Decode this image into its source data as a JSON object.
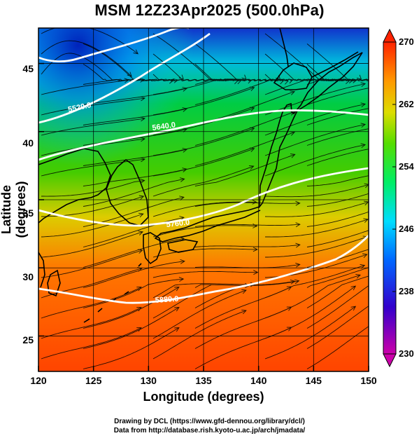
{
  "title": "MSM 12Z23Apr2025 (500.0hPa)",
  "credits": {
    "line1": "Drawing by DCL (https://www.gfd-dennou.org/library/dcl/)",
    "line2": "Data from http://database.rish.kyoto-u.ac.jp/arch/jmadata/"
  },
  "map": {
    "xlabel": "Longitude (degrees)",
    "ylabel": "Latitude  (degrees)",
    "lon_range": [
      120,
      150
    ],
    "lat_range": [
      22.4,
      47.6
    ],
    "x_ticks": [
      "120",
      "125",
      "130",
      "135",
      "140",
      "145",
      "150"
    ],
    "y_ticks": [
      "25",
      "30",
      "35",
      "40",
      "45"
    ],
    "contour_labels": [
      "5520.0",
      "5640.0",
      "5760.0",
      "5880.0"
    ],
    "contour_field": "geopotential height (m)",
    "shading_field": "temperature (K)",
    "colors": {
      "cold": "#0033cc",
      "cool": "#00ccdd",
      "mild": "#00cc33",
      "warm": "#ddcc00",
      "hot": "#ff4400",
      "contour": "#ffffff",
      "streamline": "#000000"
    }
  },
  "colorbar": {
    "min": 230,
    "max": 270,
    "labels": [
      "270",
      "262",
      "254",
      "246",
      "238",
      "230"
    ],
    "stops": [
      {
        "value": 230,
        "color": "#cc00aa"
      },
      {
        "value": 236,
        "color": "#3300cc"
      },
      {
        "value": 242,
        "color": "#0066ff"
      },
      {
        "value": 247,
        "color": "#00ddff"
      },
      {
        "value": 252,
        "color": "#00ee66"
      },
      {
        "value": 257,
        "color": "#55dd00"
      },
      {
        "value": 261,
        "color": "#dddd00"
      },
      {
        "value": 265,
        "color": "#ff9900"
      },
      {
        "value": 270,
        "color": "#ff2200"
      }
    ]
  }
}
